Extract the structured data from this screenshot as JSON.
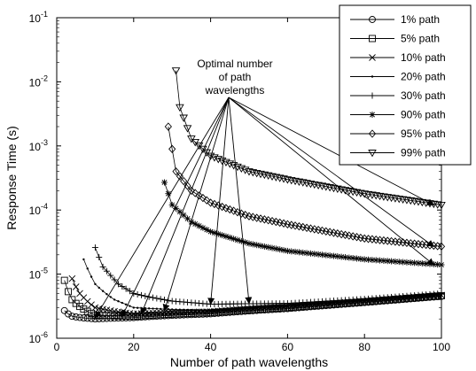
{
  "chart_data": {
    "type": "line",
    "xlabel": "Number of path wavelengths",
    "ylabel": "Response Time (s)",
    "xlim": [
      0,
      100
    ],
    "ylim_exponent": [
      -6,
      -1
    ],
    "yscale": "log",
    "grid": false,
    "legend_position": "top-right",
    "x_ticks": [
      "0",
      "20",
      "40",
      "60",
      "80",
      "100"
    ],
    "y_tick_exponents": [
      "-1",
      "-2",
      "-3",
      "-4",
      "-5",
      "-6"
    ],
    "y_tick_base": "10",
    "annotation": {
      "lines": [
        "Optimal number",
        "of path",
        "wavelengths"
      ]
    },
    "series": [
      {
        "name": "1%  path",
        "marker": "circle",
        "x_start": 2,
        "points": [
          [
            2,
            2.7e-06
          ],
          [
            4,
            2.2e-06
          ],
          [
            10,
            2e-06
          ],
          [
            20,
            2.1e-06
          ],
          [
            40,
            2.4e-06
          ],
          [
            60,
            2.9e-06
          ],
          [
            80,
            3.6e-06
          ],
          [
            100,
            4.5e-06
          ]
        ]
      },
      {
        "name": "5% path",
        "marker": "square",
        "x_start": 2,
        "points": [
          [
            2,
            8e-06
          ],
          [
            4,
            4e-06
          ],
          [
            10,
            2.3e-06
          ],
          [
            20,
            2.2e-06
          ],
          [
            40,
            2.5e-06
          ],
          [
            60,
            3e-06
          ],
          [
            80,
            3.7e-06
          ],
          [
            100,
            4.6e-06
          ]
        ]
      },
      {
        "name": "10% path",
        "marker": "x",
        "x_start": 4,
        "points": [
          [
            4,
            8.5e-06
          ],
          [
            6,
            5e-06
          ],
          [
            10,
            3e-06
          ],
          [
            20,
            2.4e-06
          ],
          [
            40,
            2.6e-06
          ],
          [
            60,
            3.1e-06
          ],
          [
            80,
            3.8e-06
          ],
          [
            100,
            4.7e-06
          ]
        ]
      },
      {
        "name": "20% path",
        "marker": "dot",
        "x_start": 7,
        "points": [
          [
            7,
            1.7e-05
          ],
          [
            10,
            7e-06
          ],
          [
            15,
            4e-06
          ],
          [
            20,
            3e-06
          ],
          [
            40,
            2.7e-06
          ],
          [
            60,
            3.2e-06
          ],
          [
            80,
            3.9e-06
          ],
          [
            100,
            4.8e-06
          ]
        ]
      },
      {
        "name": "30% path",
        "marker": "plus",
        "x_start": 10,
        "points": [
          [
            10,
            2.6e-05
          ],
          [
            12,
            1.3e-05
          ],
          [
            16,
            7e-06
          ],
          [
            20,
            5e-06
          ],
          [
            30,
            3.8e-06
          ],
          [
            40,
            3.4e-06
          ],
          [
            60,
            3.5e-06
          ],
          [
            80,
            4.1e-06
          ],
          [
            100,
            5e-06
          ]
        ]
      },
      {
        "name": "90% path",
        "marker": "star",
        "x_start": 28,
        "points": [
          [
            28,
            0.00027
          ],
          [
            30,
            0.00012
          ],
          [
            35,
            6.5e-05
          ],
          [
            40,
            4.6e-05
          ],
          [
            50,
            3e-05
          ],
          [
            60,
            2.3e-05
          ],
          [
            80,
            1.7e-05
          ],
          [
            100,
            1.4e-05
          ]
        ]
      },
      {
        "name": "95% path",
        "marker": "diamond",
        "x_start": 29,
        "points": [
          [
            29,
            0.002
          ],
          [
            31,
            0.0004
          ],
          [
            35,
            0.0002
          ],
          [
            40,
            0.00013
          ],
          [
            50,
            8e-05
          ],
          [
            60,
            6e-05
          ],
          [
            80,
            3.6e-05
          ],
          [
            100,
            2.7e-05
          ]
        ]
      },
      {
        "name": "99% path",
        "marker": "triangle-down",
        "x_start": 31,
        "points": [
          [
            31,
            0.015
          ],
          [
            32,
            0.004
          ],
          [
            35,
            0.0013
          ],
          [
            40,
            0.0007
          ],
          [
            50,
            0.0004
          ],
          [
            60,
            0.0003
          ],
          [
            80,
            0.00018
          ],
          [
            100,
            0.00012
          ]
        ]
      }
    ],
    "arrow_targets": [
      {
        "x": 10,
        "y": 2.1e-06
      },
      {
        "x": 17,
        "y": 2.2e-06
      },
      {
        "x": 22,
        "y": 2.4e-06
      },
      {
        "x": 28,
        "y": 2.7e-06
      },
      {
        "x": 40,
        "y": 3.4e-06
      },
      {
        "x": 50,
        "y": 3.5e-06
      },
      {
        "x": 98,
        "y": 1.4e-05
      },
      {
        "x": 98,
        "y": 2.7e-05
      },
      {
        "x": 98,
        "y": 0.00012
      }
    ]
  }
}
